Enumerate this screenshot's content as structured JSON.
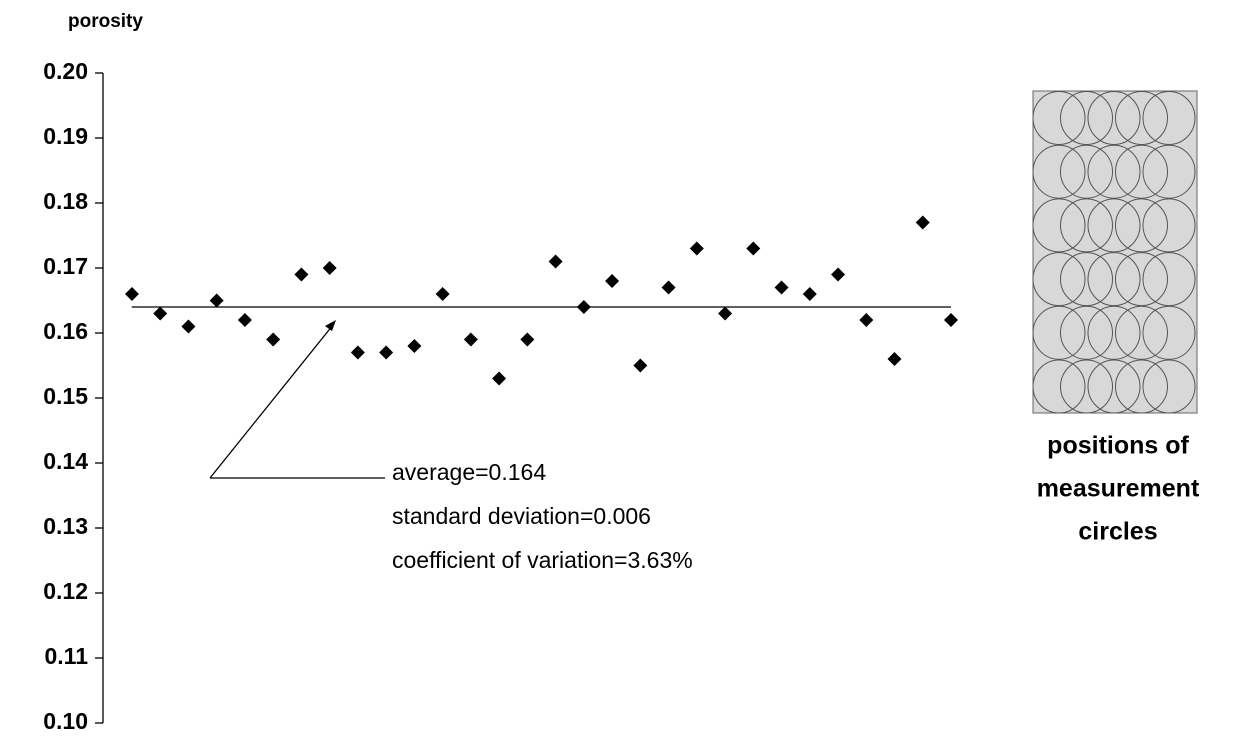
{
  "chart_data": {
    "type": "scatter",
    "y_label": "porosity",
    "x": [
      1,
      2,
      3,
      4,
      5,
      6,
      7,
      8,
      9,
      10,
      11,
      12,
      13,
      14,
      15,
      16,
      17,
      18,
      19,
      20,
      21,
      22,
      23,
      24,
      25,
      26,
      27,
      28,
      29,
      30
    ],
    "values": [
      0.166,
      0.163,
      0.161,
      0.165,
      0.162,
      0.159,
      0.169,
      0.17,
      0.157,
      0.157,
      0.158,
      0.166,
      0.159,
      0.153,
      0.159,
      0.171,
      0.164,
      0.168,
      0.155,
      0.167,
      0.173,
      0.163,
      0.173,
      0.167,
      0.166,
      0.169,
      0.162,
      0.156,
      0.177,
      0.162
    ],
    "color": "#000000",
    "xlim": [
      0,
      30
    ],
    "ylim": [
      0.1,
      0.2
    ],
    "yticks": [
      {
        "value": 0.1,
        "label": "0.10"
      },
      0.11,
      0.12,
      0.13,
      0.14,
      0.15,
      0.16,
      0.17,
      0.18,
      0.19,
      {
        "value": 0.2,
        "label": "0.20"
      }
    ],
    "reference_line": 0.164,
    "annotations": [
      "average=0.164",
      "standard deviation=0.006",
      "coefficient of variation=3.63%"
    ],
    "side_label": [
      "positions of",
      "measurement",
      "circles"
    ]
  }
}
